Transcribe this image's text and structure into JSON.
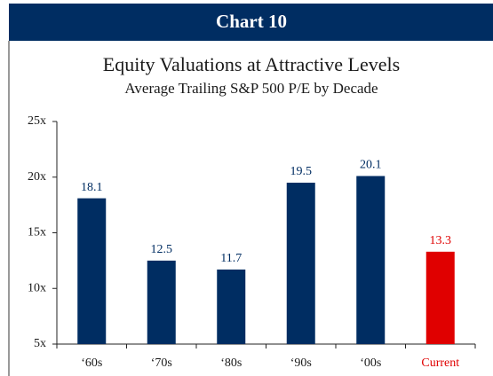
{
  "header": "Chart 10",
  "chart_data": {
    "type": "bar",
    "title": "Equity Valuations at Attractive Levels",
    "subtitle": "Average Trailing S&P 500 P/E by Decade",
    "categories": [
      "‘60s",
      "‘70s",
      "‘80s",
      "‘90s",
      "‘00s",
      "Current"
    ],
    "values": [
      18.1,
      12.5,
      11.7,
      19.5,
      20.1,
      13.3
    ],
    "colors": [
      "#002d62",
      "#002d62",
      "#002d62",
      "#002d62",
      "#002d62",
      "#e00000"
    ],
    "ylim": [
      5,
      25
    ],
    "yticks": [
      {
        "value": 5,
        "label": "5x"
      },
      {
        "value": 10,
        "label": "10x"
      },
      {
        "value": 15,
        "label": "15x"
      },
      {
        "value": 20,
        "label": "20x"
      },
      {
        "value": 25,
        "label": "25x"
      }
    ]
  }
}
